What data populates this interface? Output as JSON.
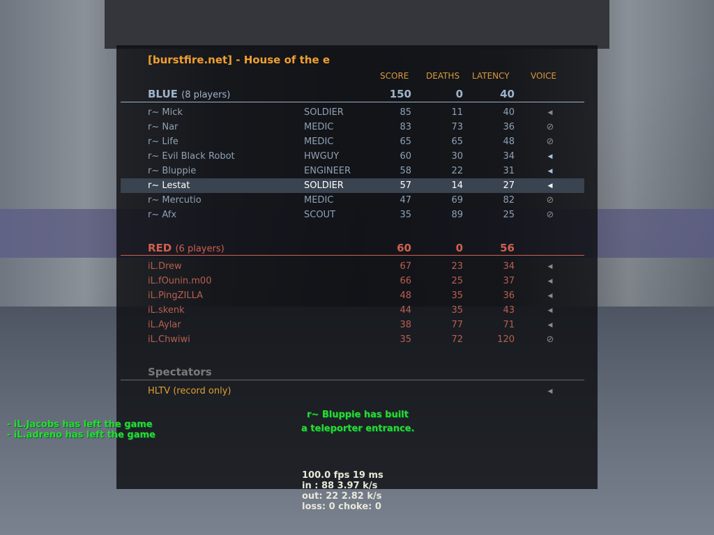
{
  "server_title": "[burstfire.net] - House of the e",
  "columns": {
    "score": "SCORE",
    "deaths": "DEATHS",
    "latency": "LATENCY",
    "voice": "VOICE"
  },
  "colors": {
    "title": "#f0a030",
    "blue_team": "#9fb4cc",
    "red_team": "#d06050",
    "spectator": "#e0a030",
    "chat": "#30d830"
  },
  "teams": [
    {
      "name": "BLUE",
      "count": "(8 players)",
      "score": "150",
      "deaths": "0",
      "latency": "40",
      "players": [
        {
          "name": "r~ Mick",
          "class": "SOLDIER",
          "score": "85",
          "deaths": "11",
          "latency": "40",
          "voice": "speaker-muted-icon"
        },
        {
          "name": "r~ Nar",
          "class": "MEDIC",
          "score": "83",
          "deaths": "73",
          "latency": "36",
          "voice": "blocked-icon"
        },
        {
          "name": "r~ Life",
          "class": "MEDIC",
          "score": "65",
          "deaths": "65",
          "latency": "48",
          "voice": "blocked-icon"
        },
        {
          "name": "r~ Evil Black Robot",
          "class": "HWGUY",
          "score": "60",
          "deaths": "30",
          "latency": "34",
          "voice": "speaker-icon"
        },
        {
          "name": "r~ Bluppie",
          "class": "ENGINEER",
          "score": "58",
          "deaths": "22",
          "latency": "31",
          "voice": "speaker-icon"
        },
        {
          "name": "r~ Lestat",
          "class": "SOLDIER",
          "score": "57",
          "deaths": "14",
          "latency": "27",
          "voice": "speaker-icon",
          "highlight": true
        },
        {
          "name": "r~ Mercutio",
          "class": "MEDIC",
          "score": "47",
          "deaths": "69",
          "latency": "82",
          "voice": "blocked-icon"
        },
        {
          "name": "r~ Afx",
          "class": "SCOUT",
          "score": "35",
          "deaths": "89",
          "latency": "25",
          "voice": "blocked-icon"
        }
      ]
    },
    {
      "name": "RED",
      "count": "(6 players)",
      "score": "60",
      "deaths": "0",
      "latency": "56",
      "players": [
        {
          "name": "iL.Drew",
          "class": "",
          "score": "67",
          "deaths": "23",
          "latency": "34",
          "voice": "speaker-muted-icon"
        },
        {
          "name": "iL.fOunin.m00",
          "class": "",
          "score": "66",
          "deaths": "25",
          "latency": "37",
          "voice": "speaker-muted-icon"
        },
        {
          "name": "iL.PingZILLA",
          "class": "",
          "score": "48",
          "deaths": "35",
          "latency": "36",
          "voice": "speaker-muted-icon"
        },
        {
          "name": "iL.skenk",
          "class": "",
          "score": "44",
          "deaths": "35",
          "latency": "43",
          "voice": "speaker-muted-icon"
        },
        {
          "name": "iL.Aylar",
          "class": "",
          "score": "38",
          "deaths": "77",
          "latency": "71",
          "voice": "speaker-muted-icon"
        },
        {
          "name": "iL.Chwiwi",
          "class": "",
          "score": "35",
          "deaths": "72",
          "latency": "120",
          "voice": "blocked-icon"
        }
      ]
    }
  ],
  "spectators": {
    "title": "Spectators",
    "entries": [
      {
        "name": "HLTV (record only)",
        "voice": "speaker-muted-icon"
      }
    ]
  },
  "center_message": [
    "r~ Bluppie has built",
    "a teleporter entrance."
  ],
  "chat": [
    "- iL.Jacobs has left the game",
    "- iL.adreno has left the game"
  ],
  "netgraph": [
    "100.0 fps  19 ms",
    "in :  88 3.97 k/s",
    "out:  22 2.82 k/s",
    "loss: 0 choke:  0"
  ]
}
